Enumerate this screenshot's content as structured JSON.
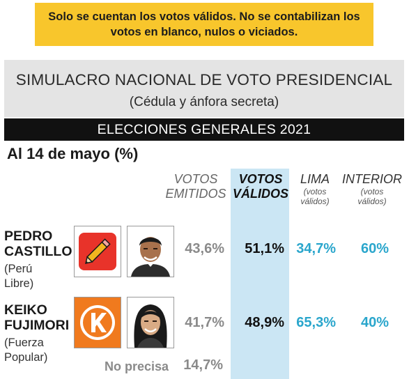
{
  "notice": {
    "line1": "Solo se cuentan los votos válidos. No se contabilizan los",
    "line2": "votos en blanco, nulos o viciados."
  },
  "header": {
    "title": "SIMULACRO NACIONAL DE VOTO PRESIDENCIAL",
    "subtitle": "(Cédula y ánfora secreta)",
    "band": "ELECCIONES GENERALES 2021"
  },
  "date_label": "Al 14 de mayo (%)",
  "columns": {
    "emitidos": [
      "VOTOS",
      "EMITIDOS"
    ],
    "validos": [
      "VOTOS",
      "VÁLIDOS"
    ],
    "lima": [
      "LIMA",
      "(votos",
      "válidos)"
    ],
    "interior": [
      "INTERIOR",
      "(votos",
      "válidos)"
    ]
  },
  "candidates": [
    {
      "name_lines": [
        "PEDRO",
        "CASTILLO"
      ],
      "party_lines": [
        "(Perú",
        "Libre)"
      ],
      "logo_icon": "pencil-icon",
      "photo_icon": "portrait-icon",
      "emitidos": "43,6%",
      "validos": "51,1%",
      "lima": "34,7%",
      "interior": "60%"
    },
    {
      "name_lines": [
        "KEIKO",
        "FUJIMORI"
      ],
      "party_lines": [
        "(Fuerza",
        "Popular)"
      ],
      "logo_icon": "letter-k-icon",
      "photo_icon": "portrait-icon",
      "emitidos": "41,7%",
      "validos": "48,9%",
      "lima": "65,3%",
      "interior": "40%"
    }
  ],
  "no_precisa": {
    "label": "No precisa",
    "value": "14,7%"
  },
  "colors": {
    "notice_bg": "#f8c62c",
    "header_bg": "#e4e4e4",
    "band_bg": "#111111",
    "highlight_bg": "#cbe6f4",
    "accent_blue": "#2aa6cc",
    "castillo_logo": "#e8332a",
    "fujimori_logo": "#f07a1e"
  },
  "chart_data": {
    "type": "table",
    "title": "SIMULACRO NACIONAL DE VOTO PRESIDENCIAL",
    "columns": [
      "VOTOS EMITIDOS",
      "VOTOS VÁLIDOS",
      "LIMA (votos válidos)",
      "INTERIOR (votos válidos)"
    ],
    "rows": [
      {
        "candidate": "PEDRO CASTILLO (Perú Libre)",
        "values": [
          43.6,
          51.1,
          34.7,
          60
        ]
      },
      {
        "candidate": "KEIKO FUJIMORI (Fuerza Popular)",
        "values": [
          41.7,
          48.9,
          65.3,
          40
        ]
      },
      {
        "candidate": "No precisa",
        "values": [
          14.7,
          null,
          null,
          null
        ]
      }
    ]
  }
}
